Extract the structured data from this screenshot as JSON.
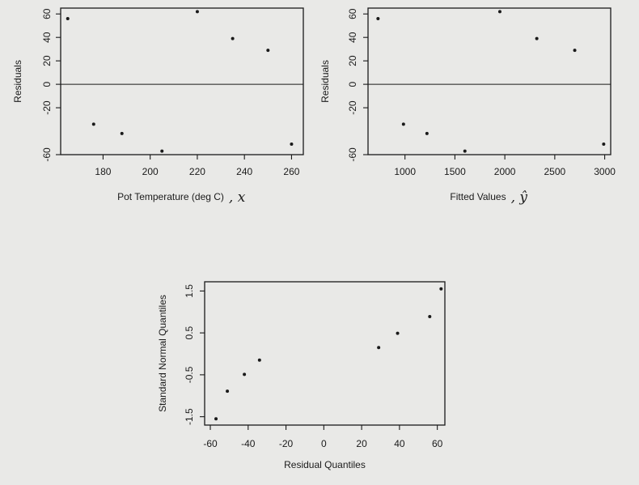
{
  "chart_data": [
    {
      "type": "scatter",
      "title": "",
      "xlabel": "Pot Temperature (deg C)",
      "xlabel_annotation": ", x",
      "ylabel": "Residuals",
      "xlim": [
        162,
        265
      ],
      "ylim": [
        -60,
        65
      ],
      "xticks": [
        180,
        200,
        220,
        240,
        260
      ],
      "yticks": [
        -60,
        -20,
        0,
        20,
        40,
        60
      ],
      "ytick_labels": [
        "-60",
        "-20",
        "0",
        "20",
        "40",
        "60"
      ],
      "reference_line_y": 0,
      "series": [
        {
          "x": [
            165,
            176,
            188,
            205,
            220,
            235,
            250,
            260
          ],
          "y": [
            56,
            -34,
            -42,
            -57,
            62,
            39,
            29,
            -51
          ]
        }
      ]
    },
    {
      "type": "scatter",
      "title": "",
      "xlabel": "Fitted Values",
      "xlabel_annotation": ", ŷ",
      "ylabel": "Residuals",
      "xlim": [
        630,
        3060
      ],
      "ylim": [
        -60,
        65
      ],
      "xticks": [
        1000,
        1500,
        2000,
        2500,
        3000
      ],
      "yticks": [
        -60,
        -20,
        0,
        20,
        40,
        60
      ],
      "ytick_labels": [
        "-60",
        "-20",
        "0",
        "20",
        "40",
        "60"
      ],
      "reference_line_y": 0,
      "series": [
        {
          "x": [
            730,
            985,
            1220,
            1600,
            1950,
            2320,
            2700,
            2990
          ],
          "y": [
            56,
            -34,
            -42,
            -57,
            62,
            39,
            29,
            -51
          ]
        }
      ]
    },
    {
      "type": "scatter",
      "title": "",
      "xlabel": "Residual Quantiles",
      "ylabel": "Standard Normal Quantiles",
      "xlim": [
        -63,
        64
      ],
      "ylim": [
        -1.7,
        1.72
      ],
      "xticks": [
        -60,
        -40,
        -20,
        0,
        20,
        40,
        60
      ],
      "yticks": [
        -1.5,
        -0.5,
        0.5,
        1.5
      ],
      "ytick_labels": [
        "-1.5",
        "-0.5",
        "0.5",
        "1.5"
      ],
      "series": [
        {
          "x": [
            -57,
            -51,
            -42,
            -34,
            29,
            39,
            56,
            62
          ],
          "y": [
            -1.55,
            -0.89,
            -0.49,
            -0.15,
            0.15,
            0.49,
            0.89,
            1.55
          ]
        }
      ]
    }
  ]
}
